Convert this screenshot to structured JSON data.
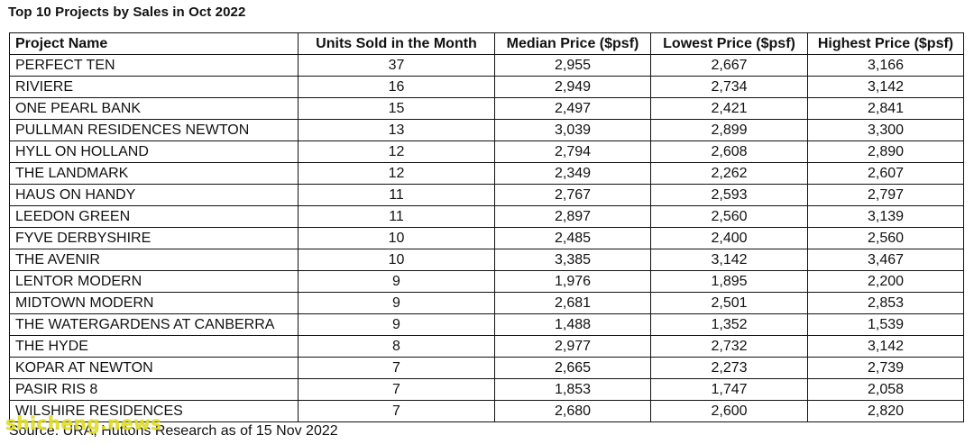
{
  "title": "Top 10 Projects by Sales in Oct 2022",
  "columns": [
    "Project Name",
    "Units Sold in the Month",
    "Median Price ($psf)",
    "Lowest Price ($psf)",
    "Highest Price ($psf)"
  ],
  "rows": [
    [
      "PERFECT TEN",
      "37",
      "2,955",
      "2,667",
      "3,166"
    ],
    [
      "RIVIERE",
      "16",
      "2,949",
      "2,734",
      "3,142"
    ],
    [
      "ONE PEARL BANK",
      "15",
      "2,497",
      "2,421",
      "2,841"
    ],
    [
      "PULLMAN RESIDENCES NEWTON",
      "13",
      "3,039",
      "2,899",
      "3,300"
    ],
    [
      "HYLL ON HOLLAND",
      "12",
      "2,794",
      "2,608",
      "2,890"
    ],
    [
      "THE LANDMARK",
      "12",
      "2,349",
      "2,262",
      "2,607"
    ],
    [
      "HAUS ON HANDY",
      "11",
      "2,767",
      "2,593",
      "2,797"
    ],
    [
      "LEEDON GREEN",
      "11",
      "2,897",
      "2,560",
      "3,139"
    ],
    [
      "FYVE DERBYSHIRE",
      "10",
      "2,485",
      "2,400",
      "2,560"
    ],
    [
      "THE AVENIR",
      "10",
      "3,385",
      "3,142",
      "3,467"
    ],
    [
      "LENTOR MODERN",
      "9",
      "1,976",
      "1,895",
      "2,200"
    ],
    [
      "MIDTOWN MODERN",
      "9",
      "2,681",
      "2,501",
      "2,853"
    ],
    [
      "THE WATERGARDENS AT CANBERRA",
      "9",
      "1,488",
      "1,352",
      "1,539"
    ],
    [
      "THE HYDE",
      "8",
      "2,977",
      "2,732",
      "3,142"
    ],
    [
      "KOPAR AT NEWTON",
      "7",
      "2,665",
      "2,273",
      "2,739"
    ],
    [
      "PASIR RIS 8",
      "7",
      "1,853",
      "1,747",
      "2,058"
    ],
    [
      "WILSHIRE RESIDENCES",
      "7",
      "2,680",
      "2,600",
      "2,820"
    ]
  ],
  "source": "Source: URA, Huttons Research as of 15 Nov 2022",
  "watermark": "shicheng.news"
}
